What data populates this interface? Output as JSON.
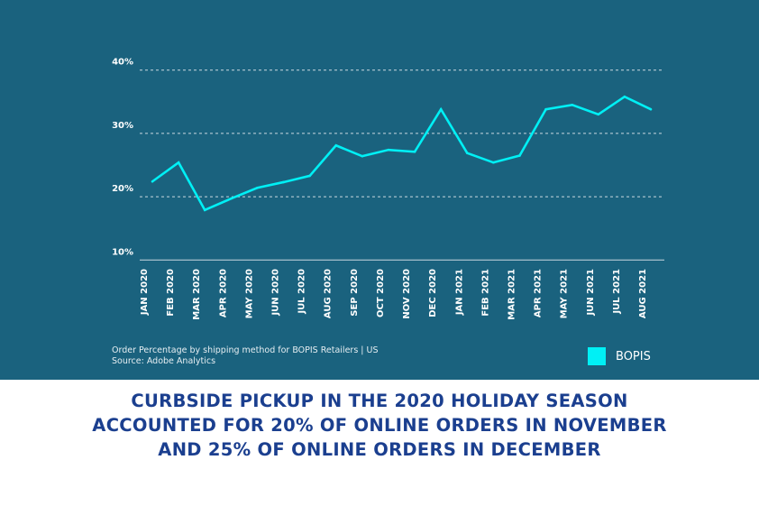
{
  "chart_data": {
    "type": "line",
    "title": "",
    "xlabel": "",
    "ylabel": "",
    "ylim": [
      10,
      40
    ],
    "yticks": [
      "10%",
      "20%",
      "30%",
      "40%"
    ],
    "ytick_values": [
      10,
      20,
      30,
      40
    ],
    "grid": true,
    "legend_position": "bottom-right",
    "categories": [
      "JAN 2020",
      "FEB 2020",
      "MAR 2020",
      "APR 2020",
      "MAY 2020",
      "JUN 2020",
      "JUL 2020",
      "AUG 2020",
      "SEP 2020",
      "OCT 2020",
      "NOV 2020",
      "DEC 2020",
      "JAN 2021",
      "FEB 2021",
      "MAR 2021",
      "APR 2021",
      "MAY 2021",
      "JUN 2021",
      "JUL 2021",
      "AUG 2021"
    ],
    "series": [
      {
        "name": "BOPIS",
        "color": "#00f0f5",
        "values": [
          22.4,
          25.4,
          17.9,
          19.7,
          21.4,
          22.3,
          23.3,
          28.1,
          26.4,
          27.4,
          27.1,
          33.8,
          26.9,
          25.4,
          26.5,
          33.8,
          34.5,
          33.0,
          35.8,
          33.8
        ]
      }
    ],
    "note_line1": "Order Percentage by shipping method for BOPIS Retailers | US",
    "note_line2": "Source: Adobe Analytics"
  },
  "headline": {
    "line1": "CURBSIDE PICKUP IN THE 2020 HOLIDAY SEASON",
    "line2": "ACCOUNTED FOR 20% OF ONLINE ORDERS IN NOVEMBER",
    "line3": "AND 25% OF ONLINE ORDERS IN DECEMBER"
  }
}
